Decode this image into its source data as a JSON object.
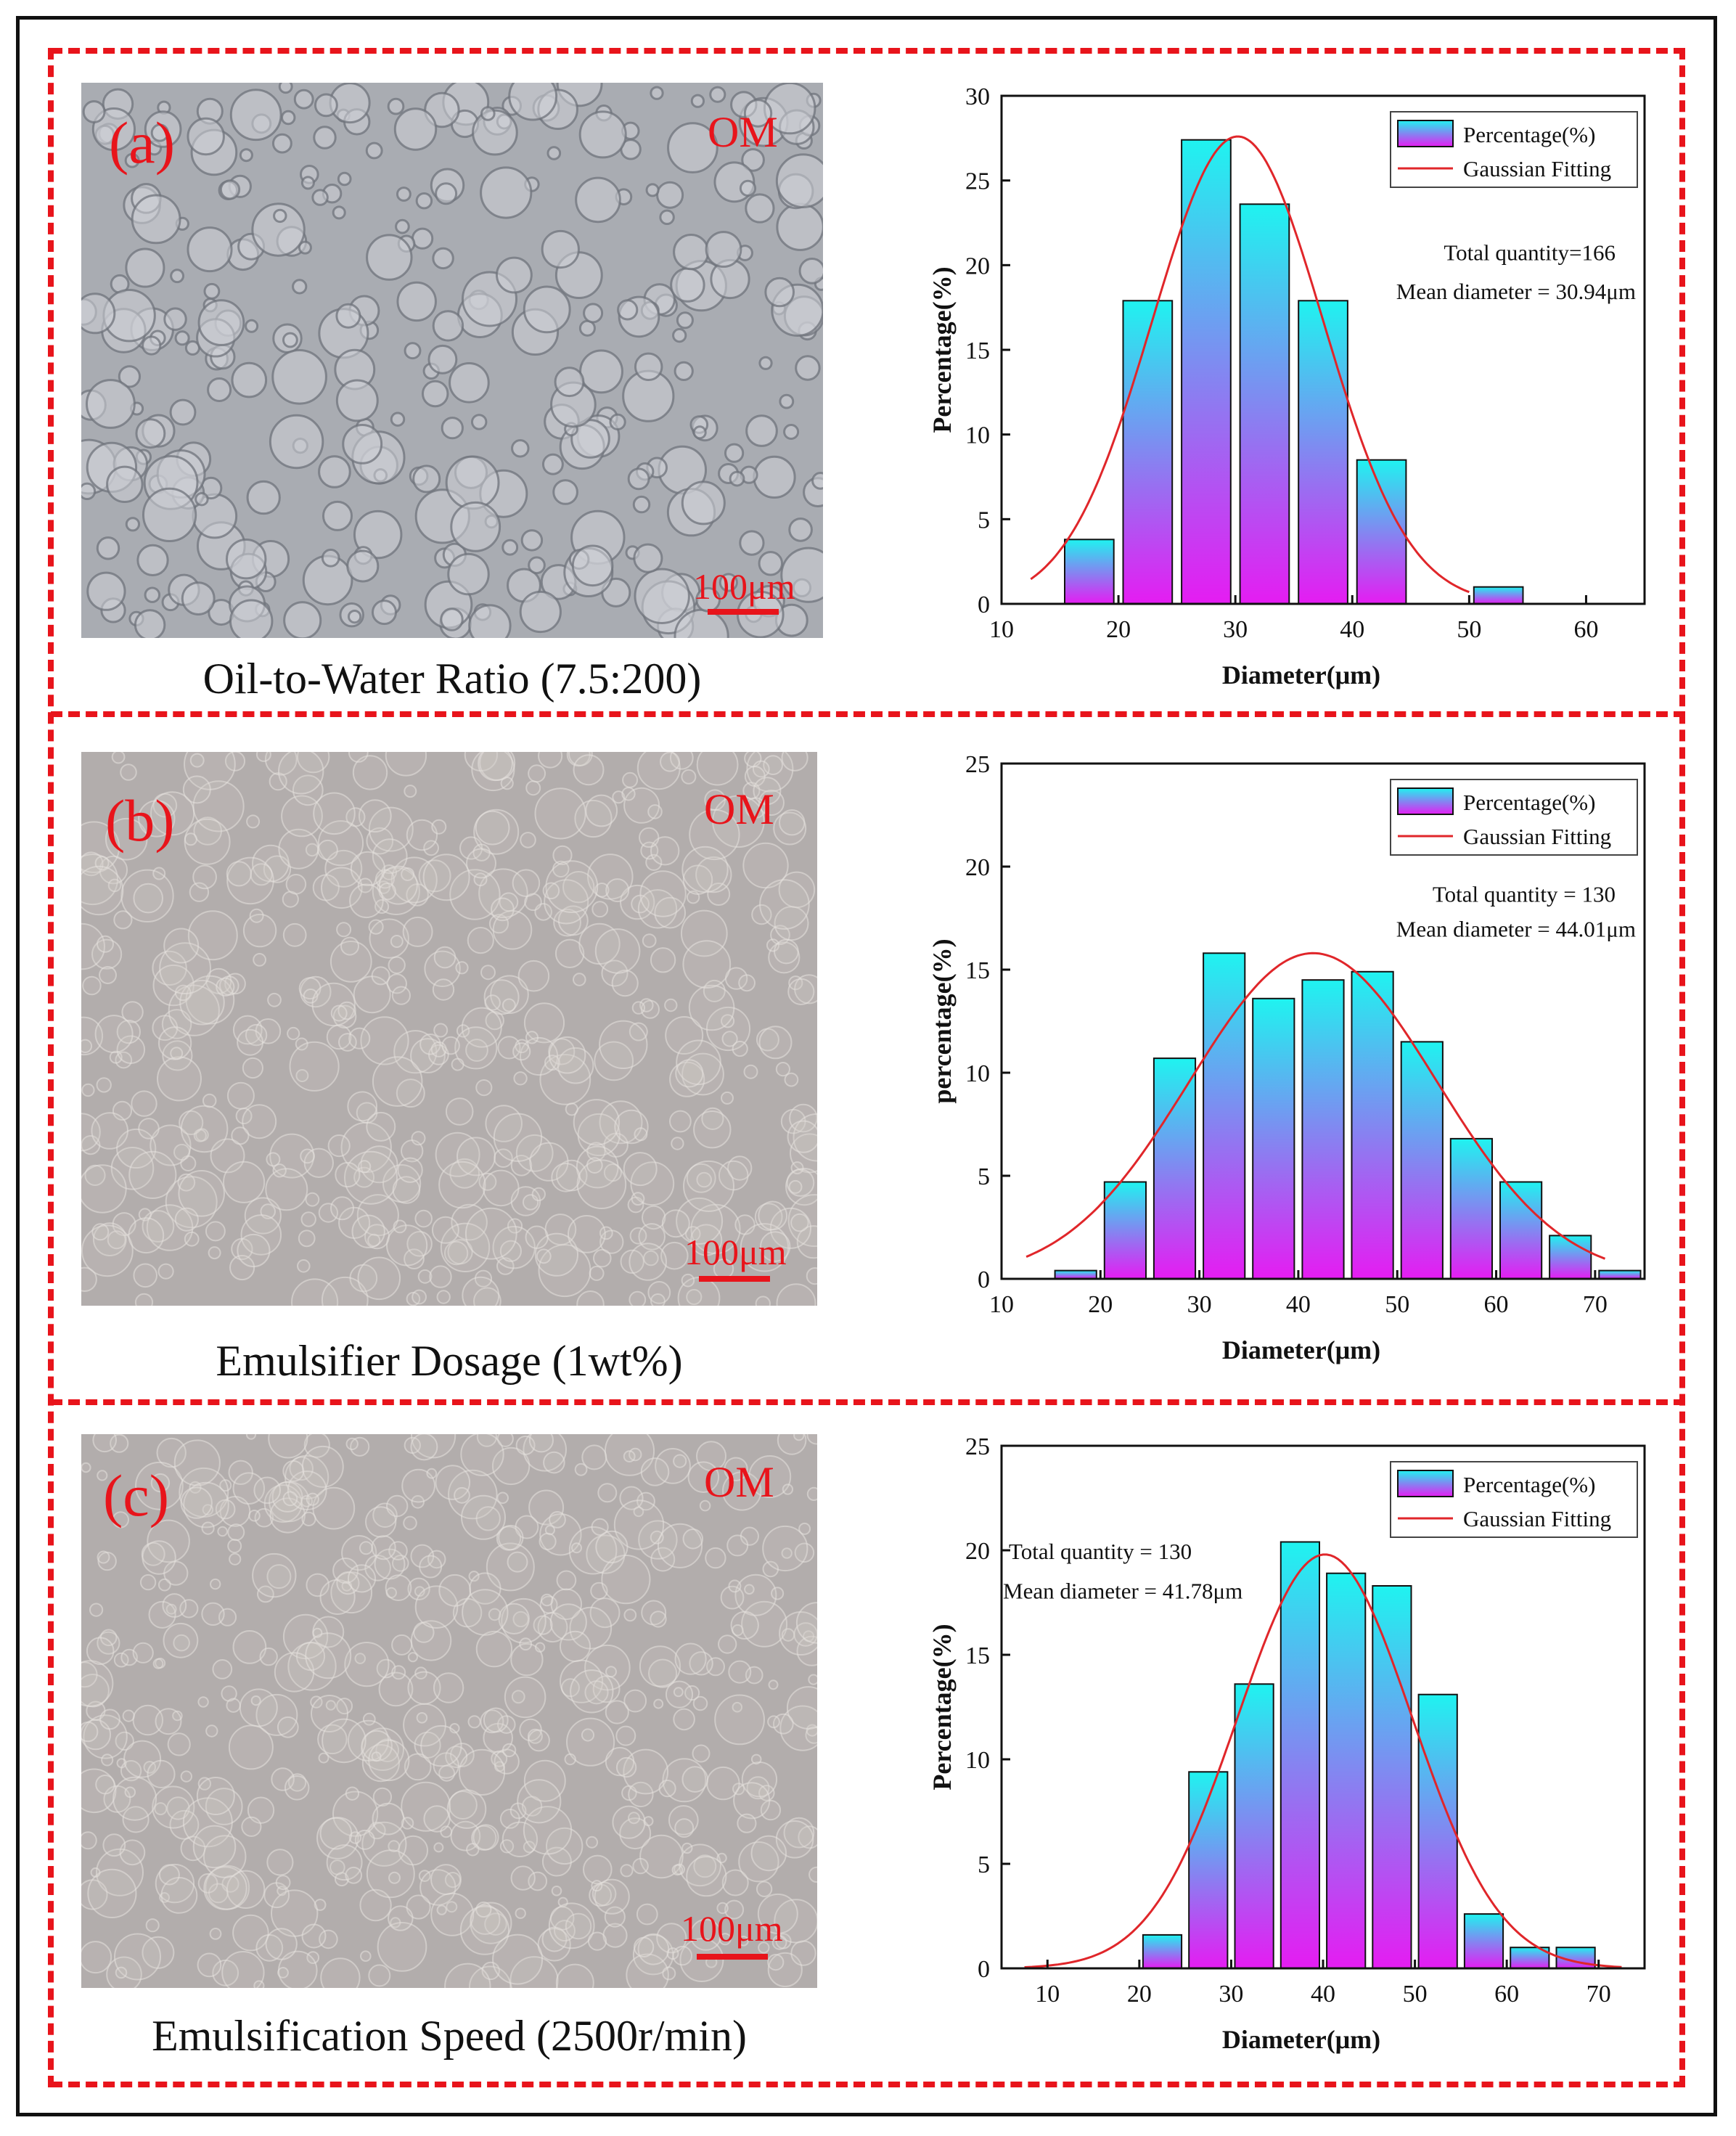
{
  "panels": [
    {
      "id": "a",
      "label": "(a)",
      "om": "OM",
      "scale": "100μm",
      "caption": "Oil-to-Water Ratio (7.5:200)",
      "chart_ref": 0
    },
    {
      "id": "b",
      "label": "(b)",
      "om": "OM",
      "scale": "100μm",
      "caption": "Emulsifier Dosage (1wt%)",
      "chart_ref": 1
    },
    {
      "id": "c",
      "label": "(c)",
      "om": "OM",
      "scale": "100μm",
      "caption": "Emulsification Speed (2500r/min)",
      "chart_ref": 2
    }
  ],
  "colors": {
    "frame": "#111111",
    "dash": "#e8141b",
    "bar_top": "#1ff3f0",
    "bar_bottom": "#e51cf2",
    "fit_line": "#e0262a",
    "micro_a": "#a9acb2",
    "micro_bc": "#b2adac"
  },
  "chart_data": [
    {
      "type": "bar",
      "title": "",
      "xlabel": "Diameter(μm)",
      "ylabel": "Percentage(%)",
      "xlim": [
        10,
        65
      ],
      "ylim": [
        0,
        30
      ],
      "xticks": [
        10,
        20,
        30,
        40,
        50,
        60
      ],
      "yticks": [
        0,
        5,
        10,
        15,
        20,
        25,
        30
      ],
      "bin_width": 5,
      "bins": [
        17.5,
        22.5,
        27.5,
        32.5,
        37.5,
        42.5,
        47.5,
        52.5
      ],
      "values": [
        3.8,
        17.9,
        27.4,
        23.6,
        17.9,
        8.5,
        0,
        1.0
      ],
      "fit": {
        "name": "Gaussian Fitting",
        "mean": 30.2,
        "sigma": 7.3,
        "peak": 27.6,
        "range": [
          12.5,
          50
        ]
      },
      "legend": [
        "Percentage(%)",
        "Gaussian Fitting"
      ],
      "annotations": [
        "Total quantity=166",
        "Mean diameter = 30.94μm"
      ]
    },
    {
      "type": "bar",
      "title": "",
      "xlabel": "Diameter(μm)",
      "ylabel": "percentage(%)",
      "xlim": [
        10,
        75
      ],
      "ylim": [
        0,
        25
      ],
      "xticks": [
        10,
        20,
        30,
        40,
        50,
        60,
        70
      ],
      "yticks": [
        0,
        5,
        10,
        15,
        20,
        25
      ],
      "bin_width": 5,
      "bins": [
        17.5,
        22.5,
        27.5,
        32.5,
        37.5,
        42.5,
        47.5,
        52.5,
        57.5,
        62.5,
        67.5,
        72.5
      ],
      "values": [
        0.4,
        4.7,
        10.7,
        15.8,
        13.6,
        14.5,
        14.9,
        11.5,
        6.8,
        4.7,
        2.1,
        0.4
      ],
      "fit": {
        "name": "Gaussian Fitting",
        "mean": 41.5,
        "sigma": 12.5,
        "peak": 15.8,
        "range": [
          12.5,
          71
        ]
      },
      "legend": [
        "Percentage(%)",
        "Gaussian Fitting"
      ],
      "annotations": [
        "Total quantity = 130",
        "Mean diameter = 44.01μm"
      ]
    },
    {
      "type": "bar",
      "title": "",
      "xlabel": "Diameter(μm)",
      "ylabel": "Percentage(%)",
      "xlim": [
        5,
        75
      ],
      "ylim": [
        0,
        25
      ],
      "xticks": [
        10,
        20,
        30,
        40,
        50,
        60,
        70
      ],
      "yticks": [
        0,
        5,
        10,
        15,
        20,
        25
      ],
      "bin_width": 5,
      "bins": [
        22.5,
        27.5,
        32.5,
        37.5,
        42.5,
        47.5,
        52.5,
        57.5,
        62.5,
        67.5
      ],
      "values": [
        1.6,
        9.4,
        13.6,
        20.4,
        18.9,
        18.3,
        13.1,
        2.6,
        1.0,
        1.0
      ],
      "fit": {
        "name": "Gaussian Fitting",
        "mean": 40.2,
        "sigma": 9.5,
        "peak": 19.8,
        "range": [
          7.5,
          72.5
        ]
      },
      "legend": [
        "Percentage(%)",
        "Gaussian Fitting"
      ],
      "annotations": [
        "Total quantity = 130",
        "Mean diameter = 41.78μm"
      ]
    }
  ]
}
